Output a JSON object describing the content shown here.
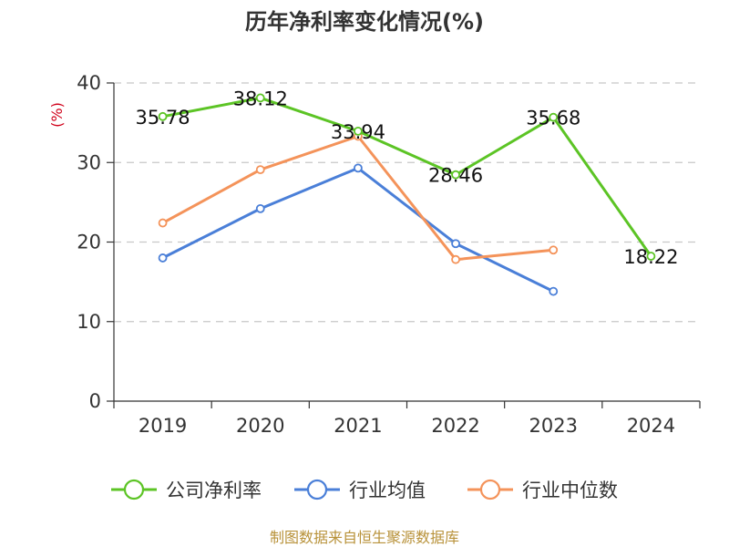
{
  "chart_data": {
    "type": "line",
    "title": "历年净利率变化情况(%)",
    "ylabel": "(%)",
    "xlabel": "",
    "categories": [
      "2019",
      "2020",
      "2021",
      "2022",
      "2023",
      "2024"
    ],
    "ylim": [
      0,
      40
    ],
    "yticks": [
      0,
      10,
      20,
      30,
      40
    ],
    "grid": true,
    "legend_position": "bottom",
    "series": [
      {
        "name": "公司净利率",
        "color": "#5cc425",
        "values": [
          35.78,
          38.12,
          33.94,
          28.46,
          35.68,
          18.22
        ],
        "show_labels": true,
        "labels": [
          "35.78",
          "38.12",
          "33.94",
          "28.46",
          "35.68",
          "18.22"
        ]
      },
      {
        "name": "行业均值",
        "color": "#4a7fd8",
        "values": [
          18.0,
          24.2,
          29.3,
          19.8,
          13.8,
          null
        ],
        "show_labels": false
      },
      {
        "name": "行业中位数",
        "color": "#f4935a",
        "values": [
          22.4,
          29.1,
          33.3,
          17.8,
          19.0,
          null
        ],
        "show_labels": false
      }
    ],
    "source": "制图数据来自恒生聚源数据库"
  }
}
